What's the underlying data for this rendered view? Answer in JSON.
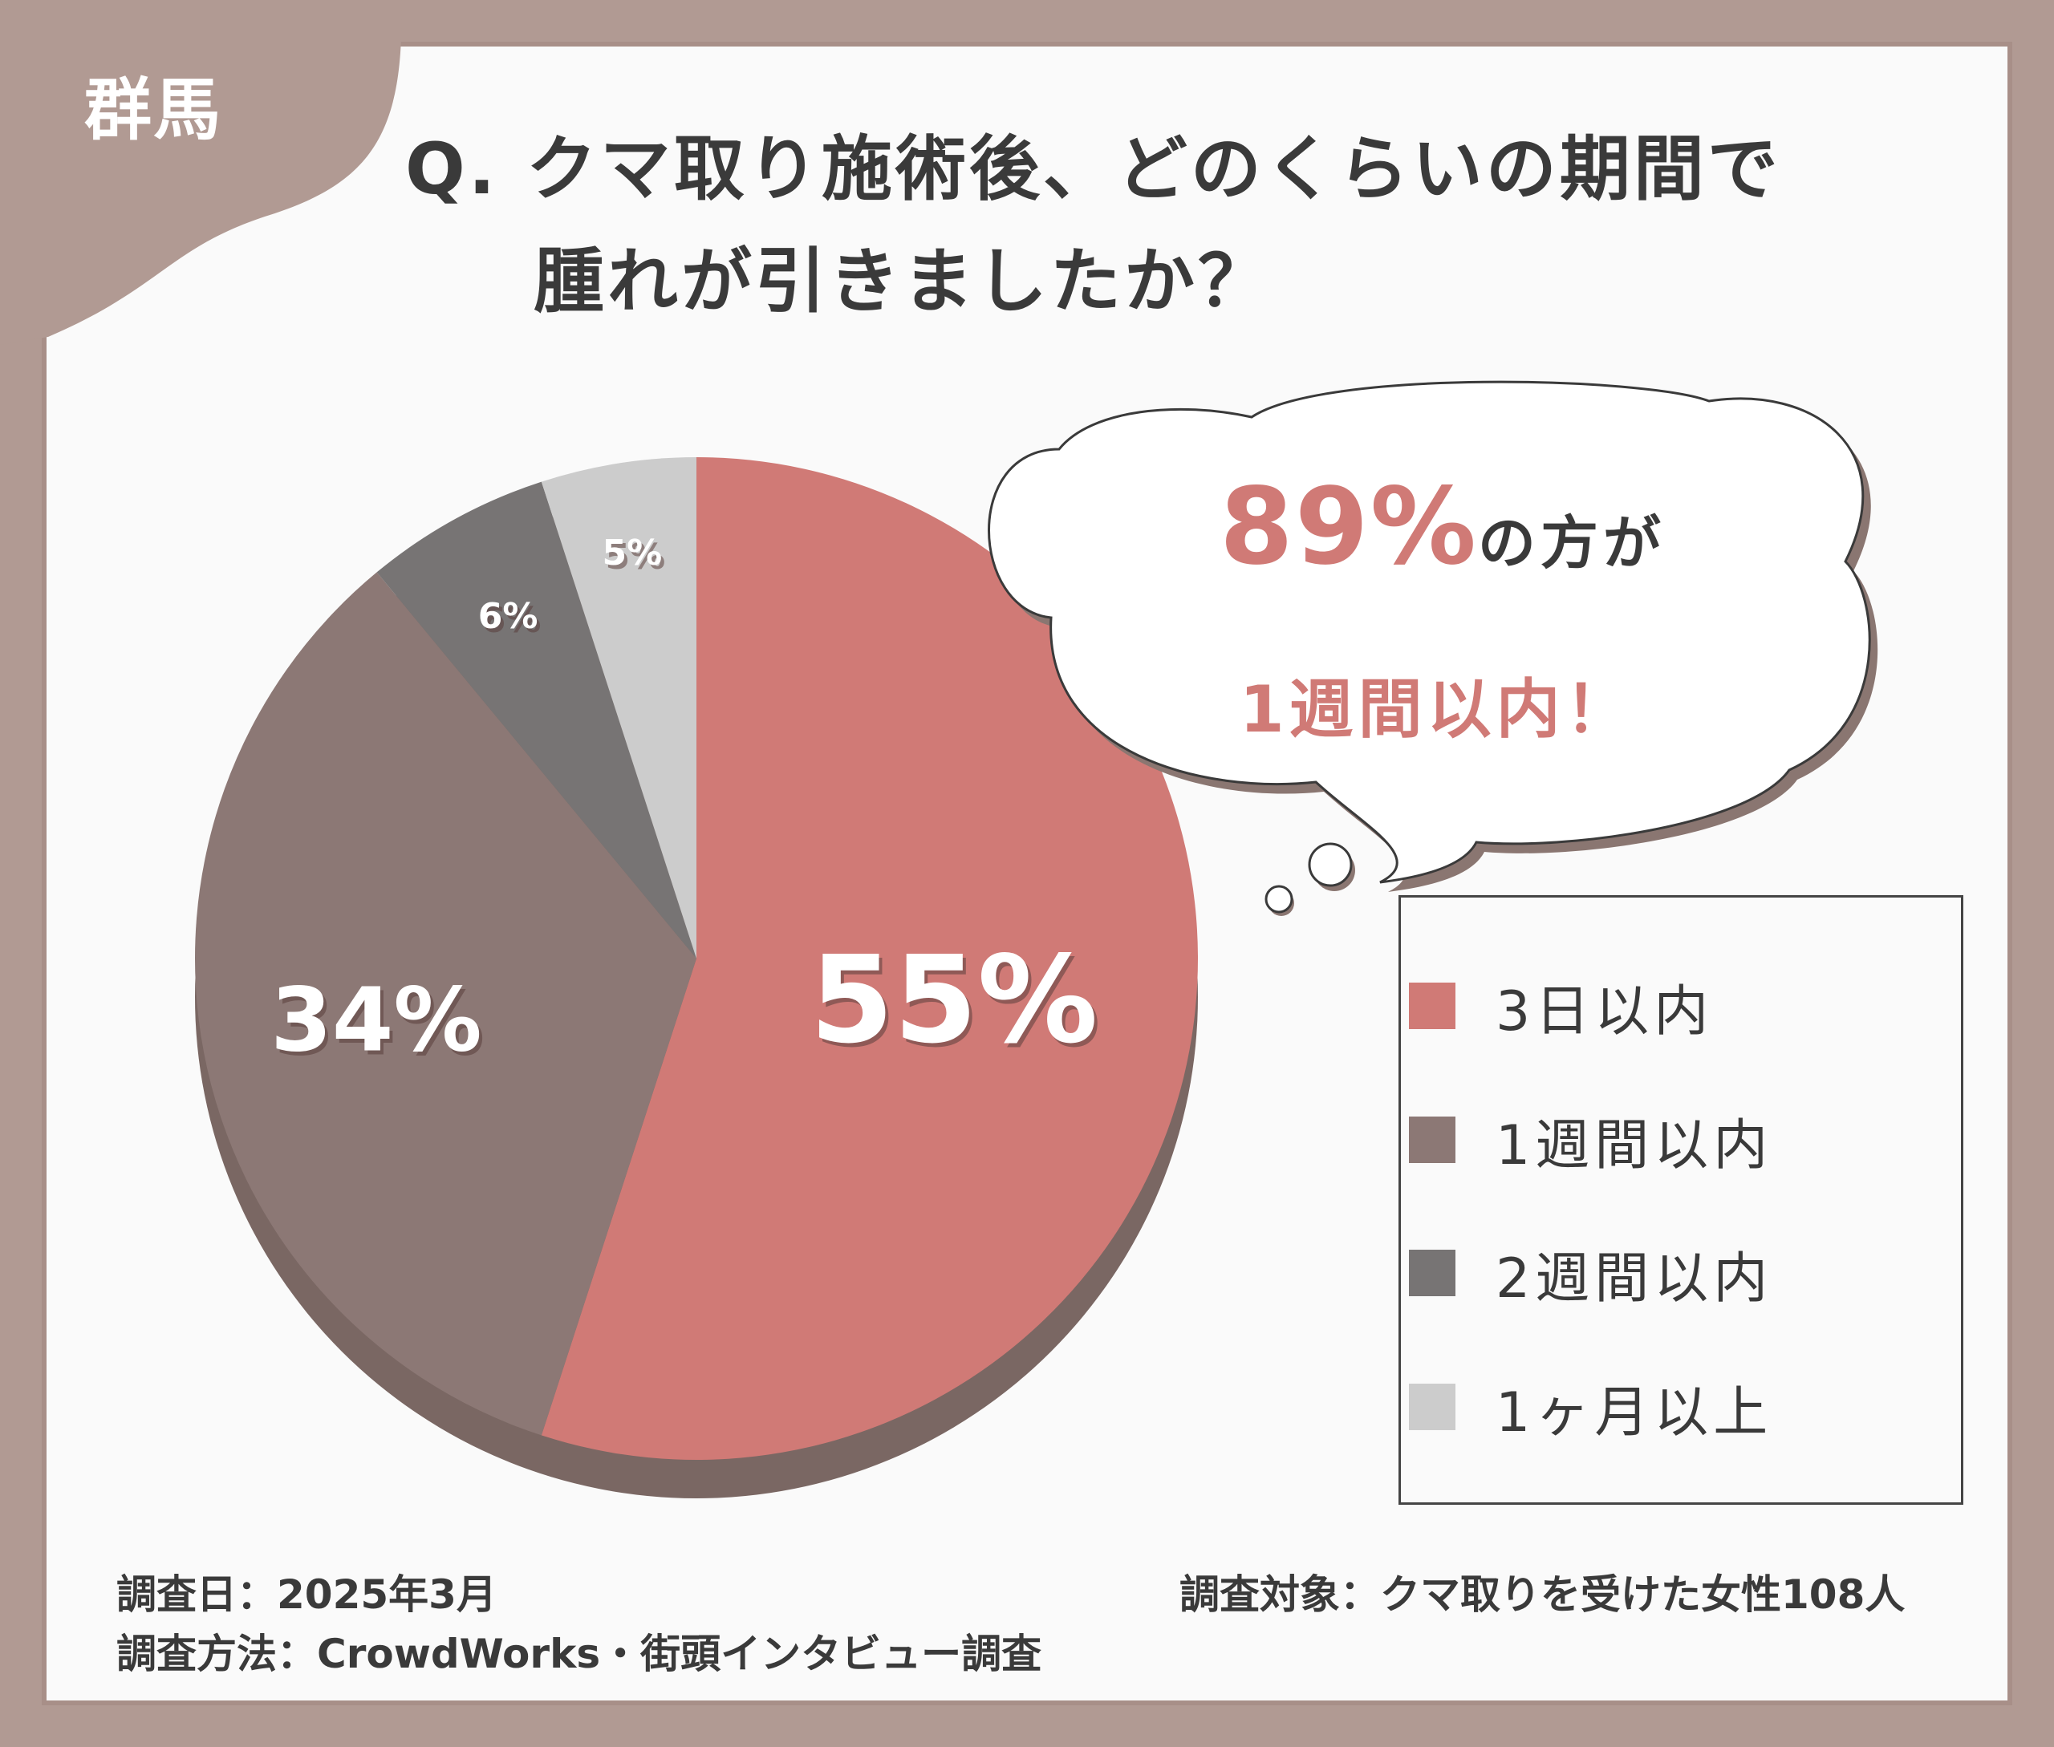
{
  "region_label": "群馬",
  "title": {
    "line1": "Q. クマ取り施術後、どのくらいの期間で",
    "line2": "腫れが引きましたか？"
  },
  "callout": {
    "percent": "89%",
    "text": "の方が",
    "subtext": "1週間以内！"
  },
  "chart_data": {
    "type": "pie",
    "categories": [
      "3日以内",
      "1週間以内",
      "2週間以内",
      "1ヶ月以上"
    ],
    "values": [
      55,
      34,
      6,
      5
    ],
    "data_labels": [
      "55%",
      "34%",
      "6%",
      "5%"
    ],
    "colors": [
      "#d07a76",
      "#8c7875",
      "#777474",
      "#cccccc"
    ],
    "legend_placement": "right"
  },
  "legend": [
    {
      "label": "3日以内",
      "color": "#d07a76"
    },
    {
      "label": "1週間以内",
      "color": "#8c7875"
    },
    {
      "label": "2週間以内",
      "color": "#777474"
    },
    {
      "label": "1ヶ月以上",
      "color": "#cccccc"
    }
  ],
  "footer": {
    "date": "調査日：2025年3月",
    "method": "調査方法：CrowdWorks・街頭インタビュー調査",
    "target": "調査対象：クマ取りを受けた女性108人"
  },
  "colors": {
    "frame": "#b19a93",
    "panel": "#fafafa",
    "accent": "#d07a76",
    "text": "#3a3a3a"
  }
}
